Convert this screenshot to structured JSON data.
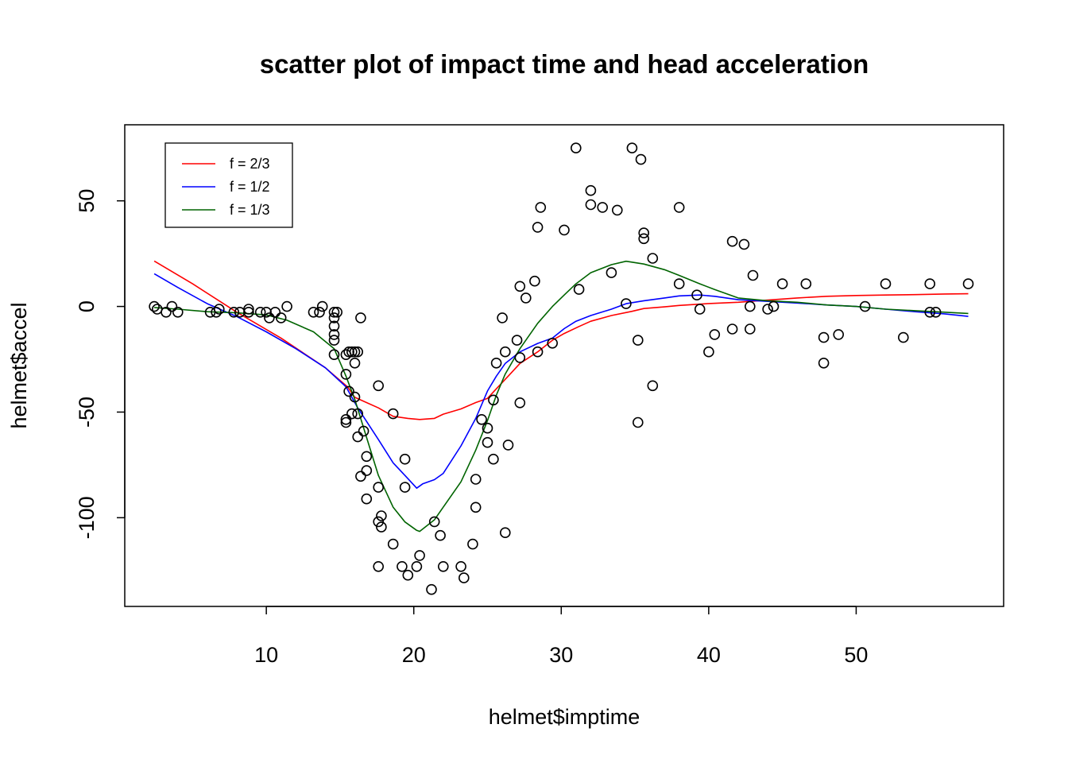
{
  "chart_data": {
    "type": "scatter",
    "title": "scatter plot of impact time and head acceleration",
    "xlabel": "helmet$imptime",
    "ylabel": "helmet$accel",
    "xlim": [
      0.4,
      60.0
    ],
    "ylim": [
      -142,
      86
    ],
    "x_ticks": [
      10,
      20,
      30,
      40,
      50
    ],
    "y_ticks": [
      50,
      0,
      -50,
      -100
    ],
    "x_tick_labels": [
      "10",
      "20",
      "30",
      "40",
      "50"
    ],
    "y_tick_labels": [
      "50",
      "0",
      "-50",
      "-100"
    ],
    "grid": false,
    "legend": {
      "position": "top-left",
      "entries": [
        {
          "label": "f =  2/3",
          "color": "#ff0000"
        },
        {
          "label": "f =  1/2",
          "color": "#0000ff"
        },
        {
          "label": "f =  1/3",
          "color": "#006400"
        }
      ]
    },
    "points": [
      [
        2.4,
        0.0
      ],
      [
        2.6,
        -1.3
      ],
      [
        3.2,
        -2.7
      ],
      [
        3.6,
        0.0
      ],
      [
        4.0,
        -2.7
      ],
      [
        6.2,
        -2.7
      ],
      [
        6.6,
        -2.7
      ],
      [
        6.8,
        -1.3
      ],
      [
        7.8,
        -2.7
      ],
      [
        8.2,
        -2.7
      ],
      [
        8.8,
        -1.3
      ],
      [
        8.8,
        -2.7
      ],
      [
        9.6,
        -2.7
      ],
      [
        10.0,
        -2.7
      ],
      [
        10.2,
        -5.4
      ],
      [
        10.6,
        -2.7
      ],
      [
        11.0,
        -5.4
      ],
      [
        11.4,
        0.0
      ],
      [
        13.2,
        -2.7
      ],
      [
        13.6,
        -2.7
      ],
      [
        13.8,
        0.0
      ],
      [
        14.6,
        -13.3
      ],
      [
        14.6,
        -2.7
      ],
      [
        14.6,
        -5.4
      ],
      [
        14.6,
        -9.3
      ],
      [
        14.6,
        -16.0
      ],
      [
        14.6,
        -22.8
      ],
      [
        14.8,
        -2.7
      ],
      [
        15.4,
        -22.8
      ],
      [
        15.4,
        -32.1
      ],
      [
        15.4,
        -53.5
      ],
      [
        15.4,
        -54.9
      ],
      [
        15.6,
        -40.2
      ],
      [
        15.6,
        -21.5
      ],
      [
        15.8,
        -21.5
      ],
      [
        15.8,
        -50.8
      ],
      [
        16.0,
        -42.9
      ],
      [
        16.0,
        -26.8
      ],
      [
        16.0,
        -21.5
      ],
      [
        16.2,
        -21.5
      ],
      [
        16.2,
        -50.8
      ],
      [
        16.2,
        -61.7
      ],
      [
        16.4,
        -5.4
      ],
      [
        16.4,
        -80.4
      ],
      [
        16.6,
        -59.0
      ],
      [
        16.8,
        -71.0
      ],
      [
        16.8,
        -91.1
      ],
      [
        16.8,
        -77.7
      ],
      [
        17.6,
        -37.5
      ],
      [
        17.6,
        -85.6
      ],
      [
        17.6,
        -123.1
      ],
      [
        17.6,
        -101.9
      ],
      [
        17.8,
        -99.1
      ],
      [
        17.8,
        -104.4
      ],
      [
        18.6,
        -112.5
      ],
      [
        18.6,
        -50.8
      ],
      [
        19.2,
        -123.1
      ],
      [
        19.4,
        -85.6
      ],
      [
        19.4,
        -72.3
      ],
      [
        19.6,
        -127.2
      ],
      [
        20.2,
        -123.1
      ],
      [
        20.4,
        -117.9
      ],
      [
        21.2,
        -134.0
      ],
      [
        21.4,
        -101.9
      ],
      [
        21.8,
        -108.4
      ],
      [
        22.0,
        -123.1
      ],
      [
        23.2,
        -123.1
      ],
      [
        23.4,
        -128.5
      ],
      [
        24.0,
        -112.5
      ],
      [
        24.2,
        -95.1
      ],
      [
        24.2,
        -81.8
      ],
      [
        24.6,
        -53.5
      ],
      [
        25.0,
        -64.4
      ],
      [
        25.0,
        -57.6
      ],
      [
        25.4,
        -72.3
      ],
      [
        25.4,
        -44.3
      ],
      [
        25.6,
        -26.8
      ],
      [
        26.0,
        -5.4
      ],
      [
        26.2,
        -107.1
      ],
      [
        26.2,
        -21.5
      ],
      [
        26.4,
        -65.6
      ],
      [
        27.0,
        -16.0
      ],
      [
        27.2,
        -45.6
      ],
      [
        27.2,
        9.5
      ],
      [
        27.2,
        -24.2
      ],
      [
        27.6,
        4.0
      ],
      [
        28.2,
        12.0
      ],
      [
        28.4,
        -21.5
      ],
      [
        28.4,
        37.5
      ],
      [
        28.6,
        46.9
      ],
      [
        29.4,
        -17.4
      ],
      [
        30.2,
        36.2
      ],
      [
        31.0,
        75.0
      ],
      [
        31.2,
        8.1
      ],
      [
        32.0,
        54.9
      ],
      [
        32.0,
        48.2
      ],
      [
        32.8,
        46.9
      ],
      [
        33.4,
        16.0
      ],
      [
        33.8,
        45.6
      ],
      [
        34.4,
        1.3
      ],
      [
        34.8,
        75.0
      ],
      [
        35.2,
        -16.0
      ],
      [
        35.2,
        -54.9
      ],
      [
        35.4,
        69.6
      ],
      [
        35.6,
        34.8
      ],
      [
        35.6,
        32.1
      ],
      [
        36.2,
        -37.5
      ],
      [
        36.2,
        22.8
      ],
      [
        38.0,
        10.7
      ],
      [
        38.0,
        46.9
      ],
      [
        39.2,
        5.4
      ],
      [
        39.4,
        -1.3
      ],
      [
        40.0,
        -21.5
      ],
      [
        40.4,
        -13.3
      ],
      [
        41.6,
        30.8
      ],
      [
        41.6,
        -10.7
      ],
      [
        42.4,
        29.4
      ],
      [
        42.8,
        0.0
      ],
      [
        42.8,
        -10.7
      ],
      [
        43.0,
        14.7
      ],
      [
        44.0,
        -1.3
      ],
      [
        44.4,
        0.0
      ],
      [
        45.0,
        10.7
      ],
      [
        46.6,
        10.7
      ],
      [
        47.8,
        -26.8
      ],
      [
        47.8,
        -14.7
      ],
      [
        48.8,
        -13.3
      ],
      [
        50.6,
        0.0
      ],
      [
        52.0,
        10.7
      ],
      [
        53.2,
        -14.7
      ],
      [
        55.0,
        -2.7
      ],
      [
        55.0,
        10.7
      ],
      [
        55.4,
        -2.7
      ],
      [
        57.6,
        10.7
      ]
    ],
    "series": [
      {
        "name": "f =  2/3",
        "color": "#ff0000",
        "x": [
          2.4,
          5.0,
          8.0,
          11.0,
          14.0,
          15.5,
          16.0,
          17.6,
          18.6,
          19.6,
          20.4,
          21.4,
          22.0,
          23.2,
          24.2,
          25.0,
          25.6,
          26.4,
          27.2,
          28.4,
          29.4,
          30.2,
          31.2,
          32.0,
          33.4,
          34.8,
          35.6,
          37.0,
          38.0,
          40.0,
          42.0,
          44.0,
          46.0,
          48.0,
          50.0,
          52.0,
          54.0,
          56.0,
          57.6
        ],
        "y": [
          21.5,
          10.7,
          -2.7,
          -15.0,
          -29.0,
          -38.0,
          -43.0,
          -48.0,
          -52.0,
          -53.0,
          -53.5,
          -53.0,
          -51.0,
          -48.5,
          -45.5,
          -43.5,
          -39.0,
          -33.0,
          -27.0,
          -21.5,
          -16.0,
          -12.8,
          -9.5,
          -7.0,
          -4.3,
          -2.3,
          -1.0,
          -0.2,
          0.5,
          1.4,
          2.0,
          3.0,
          4.0,
          4.8,
          5.2,
          5.4,
          5.6,
          5.9,
          6.0
        ]
      },
      {
        "name": "f =  1/2",
        "color": "#0000ff",
        "x": [
          2.4,
          4.0,
          6.0,
          8.0,
          10.0,
          12.0,
          14.0,
          15.4,
          16.2,
          17.6,
          18.6,
          19.4,
          20.2,
          20.6,
          21.4,
          22.0,
          23.2,
          24.2,
          25.0,
          25.6,
          26.2,
          27.2,
          28.4,
          29.4,
          30.2,
          31.0,
          32.0,
          33.4,
          34.4,
          35.6,
          37.0,
          38.0,
          39.4,
          40.4,
          42.0,
          44.0,
          46.0,
          48.0,
          50.0,
          52.0,
          54.0,
          56.0,
          57.6
        ],
        "y": [
          15.5,
          9.0,
          1.3,
          -4.8,
          -12.0,
          -20.0,
          -29.0,
          -38.0,
          -48.0,
          -63.0,
          -74.0,
          -80.0,
          -86.0,
          -84.0,
          -82.0,
          -79.0,
          -66.0,
          -53.0,
          -40.0,
          -33.0,
          -27.0,
          -21.5,
          -17.5,
          -15.0,
          -10.5,
          -7.0,
          -4.3,
          -1.3,
          1.3,
          2.7,
          4.0,
          5.0,
          5.4,
          4.8,
          3.2,
          2.4,
          1.6,
          0.7,
          0.0,
          -1.3,
          -2.5,
          -3.5,
          -4.7
        ]
      },
      {
        "name": "f =  1/3",
        "color": "#006400",
        "x": [
          2.4,
          4.0,
          6.0,
          8.0,
          10.0,
          11.4,
          13.2,
          14.6,
          15.4,
          16.0,
          16.8,
          17.6,
          18.6,
          19.4,
          20.2,
          20.4,
          21.4,
          22.0,
          23.2,
          24.2,
          25.0,
          25.6,
          26.2,
          27.2,
          28.4,
          29.4,
          30.2,
          31.0,
          32.0,
          33.4,
          34.4,
          35.6,
          37.0,
          38.0,
          39.4,
          40.4,
          42.0,
          44.0,
          46.0,
          48.0,
          50.0,
          52.0,
          54.0,
          56.0,
          57.6
        ],
        "y": [
          -0.5,
          -1.3,
          -2.5,
          -3.0,
          -4.0,
          -6.5,
          -12.0,
          -20.0,
          -33.0,
          -44.0,
          -62.0,
          -80.0,
          -95.0,
          -102.0,
          -106.0,
          -106.5,
          -101.0,
          -95.0,
          -83.0,
          -68.0,
          -54.0,
          -42.0,
          -32.0,
          -20.0,
          -8.0,
          0.0,
          5.4,
          10.7,
          16.0,
          19.8,
          21.4,
          20.1,
          17.4,
          14.7,
          10.7,
          8.0,
          4.0,
          2.7,
          2.0,
          0.7,
          0.0,
          -1.3,
          -2.0,
          -2.7,
          -3.3
        ]
      }
    ]
  }
}
